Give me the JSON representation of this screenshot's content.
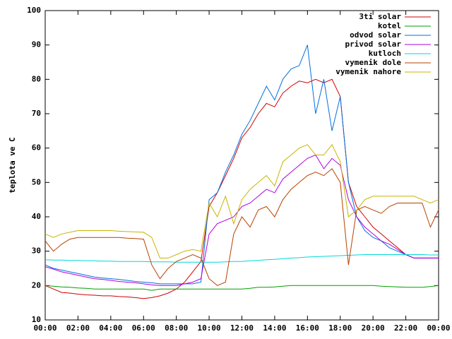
{
  "chart_data": {
    "type": "line",
    "ylabel": "teplota ve C",
    "x": [
      0,
      0.5,
      1,
      1.5,
      2,
      2.5,
      3,
      3.5,
      4,
      4.5,
      5,
      5.5,
      6,
      6.5,
      7,
      7.5,
      8,
      8.5,
      9,
      9.5,
      10,
      10.5,
      11,
      11.5,
      12,
      12.5,
      13,
      13.5,
      14,
      14.5,
      15,
      15.5,
      16,
      16.5,
      17,
      17.5,
      18,
      18.5,
      19,
      19.5,
      20,
      20.5,
      21,
      21.5,
      22,
      22.5,
      23,
      23.5,
      24
    ],
    "xlim": [
      0,
      24
    ],
    "xticks": [
      {
        "value": 0,
        "label": "00:00"
      },
      {
        "value": 2,
        "label": "02:00"
      },
      {
        "value": 4,
        "label": "04:00"
      },
      {
        "value": 6,
        "label": "06:00"
      },
      {
        "value": 8,
        "label": "08:00"
      },
      {
        "value": 10,
        "label": "10:00"
      },
      {
        "value": 12,
        "label": "12:00"
      },
      {
        "value": 14,
        "label": "14:00"
      },
      {
        "value": 16,
        "label": "16:00"
      },
      {
        "value": 18,
        "label": "18:00"
      },
      {
        "value": 20,
        "label": "20:00"
      },
      {
        "value": 22,
        "label": "22:00"
      },
      {
        "value": 24,
        "label": "00:00"
      }
    ],
    "ylim": [
      10,
      100
    ],
    "yticks": [
      10,
      20,
      30,
      40,
      50,
      60,
      70,
      80,
      90,
      100
    ],
    "legend": "top-right",
    "series": [
      {
        "name": "3ti solar",
        "color": "#d00000",
        "values": [
          20,
          19,
          18,
          17.8,
          17.5,
          17.3,
          17.2,
          17,
          17,
          16.8,
          16.7,
          16.5,
          16.2,
          16.5,
          17,
          17.8,
          19,
          21,
          24,
          27,
          43,
          47,
          52,
          57,
          63,
          66,
          70,
          73,
          72,
          76,
          78,
          79.5,
          79,
          80,
          79,
          80,
          75,
          50,
          43,
          40,
          37,
          35,
          33,
          31,
          29,
          28,
          28,
          28,
          28
        ]
      },
      {
        "name": "kotel",
        "color": "#00a000",
        "values": [
          20,
          19.8,
          19.6,
          19.5,
          19.3,
          19.2,
          19,
          19,
          19,
          19,
          19,
          19,
          19,
          18.6,
          19,
          19,
          19,
          19,
          19,
          19,
          19,
          19,
          19,
          19,
          19,
          19.2,
          19.5,
          19.5,
          19.6,
          19.8,
          20,
          20,
          20,
          20,
          20,
          20,
          20,
          20,
          20,
          20,
          20,
          19.8,
          19.7,
          19.6,
          19.5,
          19.5,
          19.5,
          19.7,
          20
        ]
      },
      {
        "name": "odvod solar",
        "color": "#0070e0",
        "values": [
          26,
          25,
          24.5,
          24,
          23.5,
          23,
          22.5,
          22.2,
          22,
          21.8,
          21.5,
          21.2,
          21,
          20.8,
          20.5,
          20.5,
          20.5,
          20.5,
          20.5,
          21,
          45,
          47,
          53,
          58,
          64,
          68,
          73,
          78,
          74,
          80,
          83,
          84,
          90,
          70,
          80,
          65,
          75,
          50,
          40,
          36,
          34,
          33,
          31,
          30,
          29,
          28,
          28,
          28,
          28
        ]
      },
      {
        "name": "privod solar",
        "color": "#b000e0",
        "values": [
          25.5,
          24.8,
          24,
          23.5,
          23,
          22.5,
          22,
          21.8,
          21.5,
          21.2,
          21,
          20.8,
          20.5,
          20.2,
          20,
          20,
          20,
          20.5,
          21,
          22,
          35,
          38,
          39,
          40,
          43,
          44,
          46,
          48,
          47,
          51,
          53,
          55,
          57,
          58,
          54,
          57,
          55,
          45,
          40,
          37,
          35,
          33,
          32,
          30.5,
          29,
          28,
          28,
          28,
          28
        ]
      },
      {
        "name": "kutloch",
        "color": "#00d8d8",
        "values": [
          27.5,
          27.4,
          27.4,
          27.3,
          27.3,
          27.2,
          27.2,
          27.1,
          27.1,
          27,
          27,
          27,
          27,
          26.9,
          26.9,
          26.9,
          26.8,
          26.8,
          26.8,
          26.8,
          26.8,
          26.8,
          26.9,
          27,
          27,
          27.2,
          27.3,
          27.5,
          27.6,
          27.8,
          28,
          28.1,
          28.3,
          28.4,
          28.5,
          28.6,
          28.7,
          28.8,
          28.9,
          29,
          29,
          29,
          29,
          29,
          29,
          29,
          29,
          28.9,
          28.9
        ]
      },
      {
        "name": "vymenik dole",
        "color": "#b84000",
        "values": [
          33,
          30,
          32,
          33.5,
          34,
          34,
          34,
          34,
          34,
          34,
          33.8,
          33.7,
          33.5,
          26,
          22,
          25,
          27,
          28,
          29,
          28,
          22,
          20,
          21,
          35,
          40,
          37,
          42,
          43,
          40,
          45,
          48,
          50,
          52,
          53,
          52,
          54,
          50,
          26,
          42,
          43,
          42,
          41,
          43,
          44,
          44,
          44,
          44,
          37,
          42
        ]
      },
      {
        "name": "vymenik nahore",
        "color": "#c8b400",
        "values": [
          35,
          34,
          35,
          35.5,
          36,
          36,
          36,
          36,
          36,
          35.8,
          35.7,
          35.6,
          35.5,
          34,
          28,
          28,
          29,
          30,
          30.5,
          30,
          44,
          40,
          46,
          38,
          45,
          48,
          50,
          52,
          49,
          56,
          58,
          60,
          61,
          58,
          58,
          61,
          56,
          40,
          42,
          45,
          46,
          46,
          46,
          46,
          46,
          46,
          45,
          44,
          45
        ]
      }
    ]
  }
}
